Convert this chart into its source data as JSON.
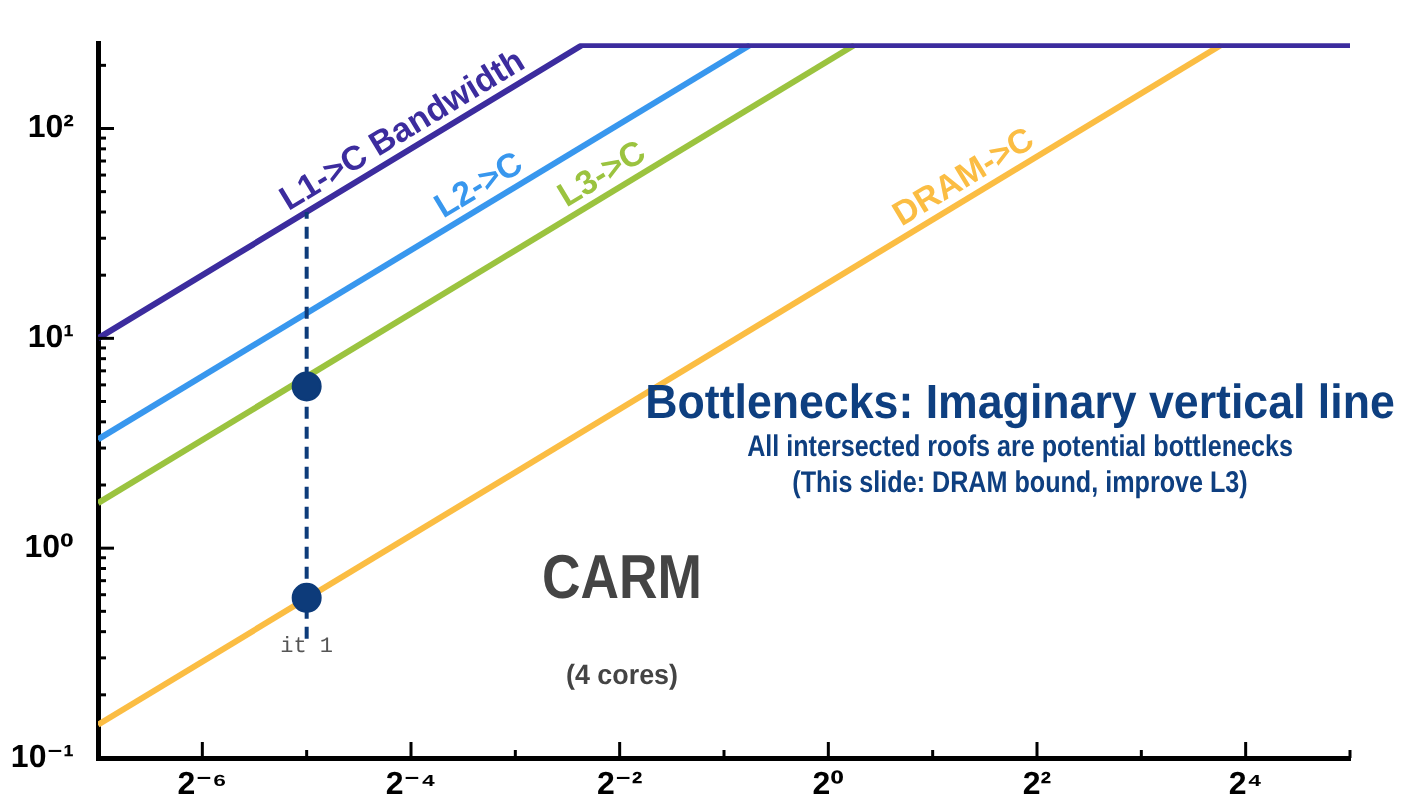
{
  "chart_data": {
    "type": "line",
    "log": "xy",
    "legend": false,
    "grid": false,
    "xlim": [
      0.0078125,
      32
    ],
    "xticks": [
      {
        "value": 0.015625,
        "label": "2⁻⁶"
      },
      {
        "value": 0.03125,
        "label": null
      },
      {
        "value": 0.0625,
        "label": "2⁻⁴"
      },
      {
        "value": 0.125,
        "label": null
      },
      {
        "value": 0.25,
        "label": "2⁻²"
      },
      {
        "value": 0.5,
        "label": null
      },
      {
        "value": 1,
        "label": "2⁰"
      },
      {
        "value": 2,
        "label": null
      },
      {
        "value": 4,
        "label": "2²"
      },
      {
        "value": 8,
        "label": null
      },
      {
        "value": 16,
        "label": "2⁴"
      },
      {
        "value": 32,
        "label": null
      }
    ],
    "ylim": [
      0.1,
      255
    ],
    "yticks": [
      {
        "value": 0.1,
        "label": "10⁻¹"
      },
      {
        "value": 0.2,
        "label": null
      },
      {
        "value": 0.3,
        "label": null
      },
      {
        "value": 0.4,
        "label": null
      },
      {
        "value": 0.5,
        "label": null
      },
      {
        "value": 0.6,
        "label": null
      },
      {
        "value": 0.7,
        "label": null
      },
      {
        "value": 0.8,
        "label": null
      },
      {
        "value": 0.9,
        "label": null
      },
      {
        "value": 1,
        "label": "10⁰"
      },
      {
        "value": 2,
        "label": null
      },
      {
        "value": 3,
        "label": null
      },
      {
        "value": 4,
        "label": null
      },
      {
        "value": 5,
        "label": null
      },
      {
        "value": 6,
        "label": null
      },
      {
        "value": 7,
        "label": null
      },
      {
        "value": 8,
        "label": null
      },
      {
        "value": 9,
        "label": null
      },
      {
        "value": 10,
        "label": "10¹"
      },
      {
        "value": 20,
        "label": null
      },
      {
        "value": 30,
        "label": null
      },
      {
        "value": 40,
        "label": null
      },
      {
        "value": 50,
        "label": null
      },
      {
        "value": 60,
        "label": null
      },
      {
        "value": 70,
        "label": null
      },
      {
        "value": 80,
        "label": null
      },
      {
        "value": 90,
        "label": null
      },
      {
        "value": 100,
        "label": "10²"
      },
      {
        "value": 200,
        "label": null
      }
    ],
    "series": [
      {
        "name": "L1->C Bandwidth",
        "color": "#3c2c9e",
        "x": [
          0.0078125,
          0.195,
          32
        ],
        "values": [
          10,
          250,
          250
        ]
      },
      {
        "name": "L2->C",
        "color": "#3897ee",
        "x": [
          0.0078125,
          0.595
        ],
        "values": [
          3.3,
          250
        ]
      },
      {
        "name": "L3->C",
        "color": "#9bc33f",
        "x": [
          0.0078125,
          1.19
        ],
        "values": [
          1.64,
          250
        ]
      },
      {
        "name": "DRAM->C",
        "color": "#fbbd43",
        "x": [
          0.0078125,
          13.6
        ],
        "values": [
          0.144,
          250
        ]
      },
      {
        "type": "line",
        "color": "#0d3b7a",
        "line_style": "dashed",
        "x": [
          0.03125,
          0.03125
        ],
        "values": [
          0.37,
          40
        ]
      },
      {
        "type": "scatter",
        "color": "#0d3b7a",
        "marker": "circle",
        "x": [
          0.03125,
          0.03125
        ],
        "values": [
          5.9,
          0.58
        ]
      }
    ],
    "annotations": [
      "Bottlenecks: Imaginary vertical line",
      "All intersected roofs are potential bottlenecks",
      "(This slide: DRAM bound, improve L3)",
      "CARM",
      "(4 cores)",
      {
        "text": "it 1",
        "x": 0.03125,
        "y": 0.58
      }
    ]
  }
}
